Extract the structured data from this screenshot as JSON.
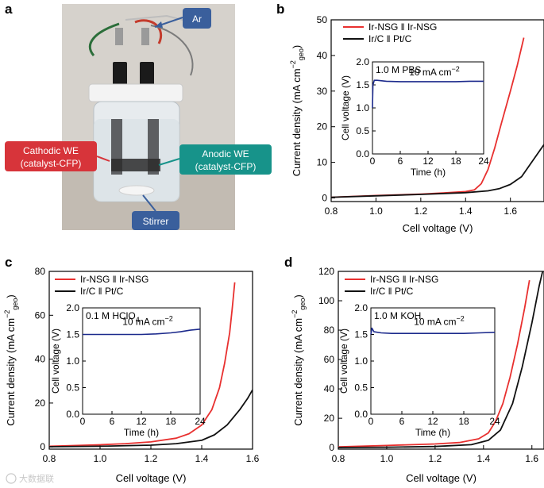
{
  "panels": {
    "a": {
      "letter": "a",
      "callouts": {
        "ar": "Ar",
        "cathode_line1": "Cathodic WE",
        "cathode_line2": "(catalyst-CFP)",
        "anode_line1": "Anodic WE",
        "anode_line2": "(catalyst-CFP)",
        "stirrer": "Stirrer"
      }
    },
    "b": {
      "letter": "b"
    },
    "c": {
      "letter": "c"
    },
    "d": {
      "letter": "d"
    }
  },
  "colors": {
    "ir_nsg": "#e8302f",
    "pt_c": "#111111",
    "inset": "#1c2a8c",
    "callout_blue": "#3a5f9c",
    "callout_red": "#d7343a",
    "callout_teal": "#17938a"
  },
  "watermark": "大数据联",
  "chart_data": [
    {
      "id": "b",
      "type": "line",
      "xlabel": "Cell voltage (V)",
      "ylabel_parts": [
        "Current density (mA cm",
        "−2",
        "geo",
        ")"
      ],
      "xlim": [
        0.8,
        1.75
      ],
      "ylim": [
        -1,
        50
      ],
      "xticks": [
        "0.8",
        "1.0",
        "1.2",
        "1.4",
        "1.6"
      ],
      "xtick_values": [
        0.8,
        1.0,
        1.2,
        1.4,
        1.6
      ],
      "yticks": [
        "0",
        "10",
        "20",
        "30",
        "40",
        "50"
      ],
      "ytick_values": [
        0,
        10,
        20,
        30,
        40,
        50
      ],
      "legend": [
        "Ir-NSG ǁ Ir-NSG",
        "Ir/C ǁ Pt/C"
      ],
      "series": [
        {
          "name": "Ir-NSG ǁ Ir-NSG",
          "color": "#e8302f",
          "x": [
            0.8,
            1.0,
            1.2,
            1.3,
            1.4,
            1.44,
            1.47,
            1.5,
            1.53,
            1.56,
            1.6,
            1.63,
            1.66
          ],
          "y": [
            0.2,
            0.7,
            1.1,
            1.4,
            1.8,
            2.3,
            4,
            8,
            14,
            21,
            30,
            37,
            45
          ]
        },
        {
          "name": "Ir/C ǁ Pt/C",
          "color": "#111111",
          "x": [
            0.8,
            1.0,
            1.2,
            1.4,
            1.5,
            1.55,
            1.6,
            1.65,
            1.7,
            1.75
          ],
          "y": [
            0.2,
            0.6,
            1.0,
            1.5,
            2.0,
            2.6,
            3.8,
            6.0,
            10.5,
            15
          ]
        }
      ],
      "inset": {
        "label": "1.0 M PBS",
        "annotation": "10 mA cm",
        "annotation_exp": "−2",
        "xlabel": "Time (h)",
        "ylabel": "Cell voltage (V)",
        "xlim": [
          0,
          24
        ],
        "ylim": [
          0.0,
          2.0
        ],
        "xticks": [
          "0",
          "6",
          "12",
          "18",
          "24"
        ],
        "xtick_values": [
          0,
          6,
          12,
          18,
          24
        ],
        "yticks": [
          "0.0",
          "0.5",
          "1.0",
          "1.5",
          "2.0"
        ],
        "ytick_values": [
          0.0,
          0.5,
          1.0,
          1.5,
          2.0
        ],
        "x": [
          0,
          0.1,
          0.4,
          1,
          3,
          6,
          9,
          12,
          15,
          18,
          21,
          24
        ],
        "y": [
          1.0,
          1.5,
          1.6,
          1.6,
          1.58,
          1.57,
          1.57,
          1.57,
          1.57,
          1.57,
          1.58,
          1.58
        ]
      }
    },
    {
      "id": "c",
      "type": "line",
      "xlabel": "Cell voltage (V)",
      "ylabel_parts": [
        "Current density (mA cm",
        "−2",
        "geo",
        ")"
      ],
      "xlim": [
        0.8,
        1.6
      ],
      "ylim": [
        -1,
        80
      ],
      "xticks": [
        "0.8",
        "1.0",
        "1.2",
        "1.4",
        "1.6"
      ],
      "xtick_values": [
        0.8,
        1.0,
        1.2,
        1.4,
        1.6
      ],
      "yticks": [
        "0",
        "20",
        "40",
        "60",
        "80"
      ],
      "ytick_values": [
        0,
        20,
        40,
        60,
        80
      ],
      "legend": [
        "Ir-NSG ǁ Ir-NSG",
        "Ir/C ǁ Pt/C"
      ],
      "series": [
        {
          "name": "Ir-NSG ǁ Ir-NSG",
          "color": "#e8302f",
          "x": [
            0.8,
            1.0,
            1.1,
            1.2,
            1.3,
            1.35,
            1.4,
            1.44,
            1.47,
            1.49,
            1.51,
            1.52,
            1.53
          ],
          "y": [
            0.3,
            1.0,
            1.5,
            2.3,
            4.0,
            6.0,
            10.0,
            17.0,
            27.0,
            38.0,
            52.0,
            63.0,
            75.0
          ]
        },
        {
          "name": "Ir/C ǁ Pt/C",
          "color": "#111111",
          "x": [
            0.8,
            1.0,
            1.2,
            1.3,
            1.4,
            1.45,
            1.5,
            1.55,
            1.58,
            1.6
          ],
          "y": [
            0.1,
            0.3,
            0.8,
            1.5,
            3.0,
            5.5,
            10.0,
            17.0,
            22.0,
            26.0
          ]
        }
      ],
      "inset": {
        "label": "0.1 M HClO",
        "label_sub": "4",
        "annotation": "10 mA cm",
        "annotation_exp": "−2",
        "xlabel": "Time (h)",
        "ylabel": "Cell voltage (V)",
        "xlim": [
          0,
          24
        ],
        "ylim": [
          0.0,
          2.0
        ],
        "xticks": [
          "0",
          "6",
          "12",
          "18",
          "24"
        ],
        "xtick_values": [
          0,
          6,
          12,
          18,
          24
        ],
        "yticks": [
          "0.0",
          "0.5",
          "1.0",
          "1.5",
          "2.0"
        ],
        "ytick_values": [
          0.0,
          0.5,
          1.0,
          1.5,
          2.0
        ],
        "x": [
          0,
          3,
          6,
          9,
          12,
          15,
          18,
          20,
          22,
          24
        ],
        "y": [
          1.5,
          1.5,
          1.5,
          1.5,
          1.5,
          1.51,
          1.53,
          1.55,
          1.58,
          1.6
        ]
      }
    },
    {
      "id": "d",
      "type": "line",
      "xlabel": "Cell voltage (V)",
      "ylabel_parts": [
        "Current density (mA cm",
        "−2",
        "geo",
        ")"
      ],
      "xlim": [
        0.8,
        1.65
      ],
      "ylim": [
        -1,
        120
      ],
      "xticks": [
        "0.8",
        "1.0",
        "1.2",
        "1.4",
        "1.6"
      ],
      "xtick_values": [
        0.8,
        1.0,
        1.2,
        1.4,
        1.6
      ],
      "yticks": [
        "0",
        "20",
        "40",
        "60",
        "80",
        "100",
        "120"
      ],
      "ytick_values": [
        0,
        20,
        40,
        60,
        80,
        100,
        120
      ],
      "legend": [
        "Ir-NSG ǁ Ir-NSG",
        "Ir/C ǁ Pt/C"
      ],
      "series": [
        {
          "name": "Ir-NSG ǁ Ir-NSG",
          "color": "#e8302f",
          "x": [
            0.8,
            1.0,
            1.2,
            1.3,
            1.38,
            1.42,
            1.45,
            1.48,
            1.51,
            1.54,
            1.57,
            1.59
          ],
          "y": [
            0.5,
            1.5,
            2.5,
            3.5,
            6.0,
            10.0,
            18.0,
            30.0,
            48.0,
            70.0,
            95.0,
            114.0
          ]
        },
        {
          "name": "Ir/C ǁ Pt/C",
          "color": "#111111",
          "x": [
            0.8,
            1.0,
            1.2,
            1.35,
            1.42,
            1.47,
            1.52,
            1.56,
            1.6,
            1.63,
            1.65
          ],
          "y": [
            0.1,
            0.3,
            0.8,
            2.0,
            5.0,
            12.0,
            30.0,
            55.0,
            85.0,
            110.0,
            124.0
          ]
        }
      ],
      "inset": {
        "label": "1.0 M KOH",
        "annotation": "10 mA cm",
        "annotation_exp": "−2",
        "xlabel": "Time (h)",
        "ylabel": "Cell voltage (V)",
        "xlim": [
          0,
          24
        ],
        "ylim": [
          0.0,
          2.0
        ],
        "xticks": [
          "0",
          "6",
          "12",
          "18",
          "24"
        ],
        "xtick_values": [
          0,
          6,
          12,
          18,
          24
        ],
        "yticks": [
          "0.0",
          "0.5",
          "1.0",
          "1.5",
          "2.0"
        ],
        "ytick_values": [
          0.0,
          0.5,
          1.0,
          1.5,
          2.0
        ],
        "x": [
          0,
          0.2,
          0.6,
          2,
          4,
          6,
          9,
          12,
          15,
          18,
          21,
          24
        ],
        "y": [
          1.5,
          1.62,
          1.55,
          1.53,
          1.52,
          1.52,
          1.52,
          1.52,
          1.52,
          1.52,
          1.53,
          1.54
        ]
      }
    }
  ]
}
